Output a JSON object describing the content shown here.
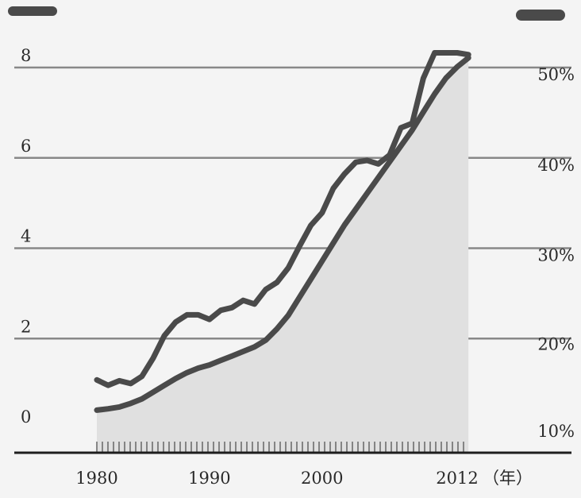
{
  "chart_data": {
    "type": "line",
    "title": "",
    "x_unit": "（年）",
    "x_ticks": [
      1980,
      1990,
      2000,
      2012
    ],
    "left_axis": {
      "ylim": [
        0,
        8
      ],
      "ticks": [
        0,
        2,
        4,
        6,
        8
      ]
    },
    "right_axis": {
      "ylim": [
        10,
        50
      ],
      "ticks": [
        "10%",
        "20%",
        "30%",
        "40%",
        "50%"
      ]
    },
    "grid": true,
    "legend": "top-left marker (left axis series), top-right marker (right axis series); no legend text printed",
    "colors": {
      "line": "#4a4a4a",
      "area": "#e0e0e0",
      "grid": "#888888",
      "axis": "#1e1e1e"
    },
    "series": [
      {
        "axis": "left",
        "fill": true,
        "x": [
          1980,
          1981,
          1982,
          1983,
          1984,
          1985,
          1986,
          1987,
          1988,
          1989,
          1990,
          1991,
          1992,
          1993,
          1994,
          1995,
          1996,
          1997,
          1998,
          1999,
          2000,
          2001,
          2002,
          2003,
          2004,
          2005,
          2006,
          2007,
          2008,
          2009,
          2010,
          2011,
          2012,
          2013
        ],
        "values": [
          0.45,
          0.48,
          0.52,
          0.6,
          0.7,
          0.85,
          1.0,
          1.15,
          1.28,
          1.38,
          1.45,
          1.55,
          1.65,
          1.75,
          1.85,
          2.0,
          2.25,
          2.55,
          2.95,
          3.35,
          3.75,
          4.15,
          4.55,
          4.9,
          5.25,
          5.6,
          5.95,
          6.3,
          6.65,
          7.05,
          7.45,
          7.8,
          8.05,
          8.25
        ]
      },
      {
        "axis": "right",
        "fill": false,
        "x": [
          1980,
          1981,
          1982,
          1983,
          1984,
          1985,
          1986,
          1987,
          1988,
          1989,
          1990,
          1991,
          1992,
          1993,
          1994,
          1995,
          1996,
          1997,
          1998,
          1999,
          2000,
          2001,
          2002,
          2003,
          2004,
          2005,
          2006,
          2007,
          2008,
          2009,
          2010,
          2011,
          2012,
          2013
        ],
        "values": [
          15.6,
          15.0,
          15.5,
          15.2,
          16.0,
          18.0,
          20.5,
          22.0,
          22.8,
          22.8,
          22.3,
          23.3,
          23.6,
          24.4,
          24.0,
          25.6,
          26.4,
          28.0,
          30.4,
          32.7,
          34.1,
          36.8,
          38.4,
          39.7,
          39.9,
          39.5,
          40.5,
          43.5,
          44.0,
          49.0,
          51.8,
          51.8,
          51.8,
          51.6
        ]
      }
    ]
  }
}
